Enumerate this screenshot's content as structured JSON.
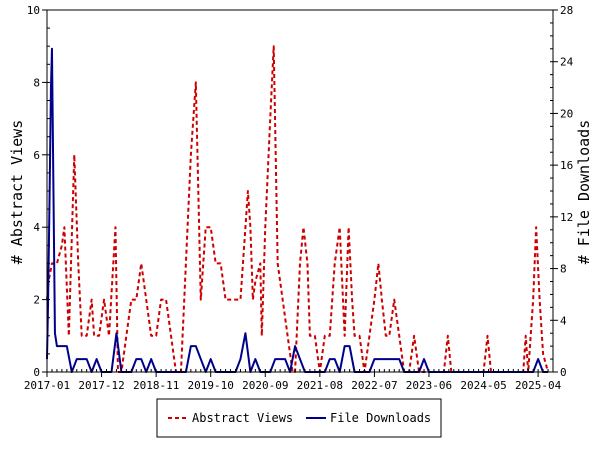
{
  "chart_data": {
    "type": "line",
    "ylabel_left": "# Abstract Views",
    "ylabel_right": "# File Downloads",
    "xlim": [
      0,
      102
    ],
    "ylim_left": [
      0,
      10
    ],
    "ylim_right": [
      0,
      28
    ],
    "yticks_left": [
      0,
      2,
      4,
      6,
      8,
      10
    ],
    "yticks_right": [
      0,
      4,
      8,
      12,
      16,
      20,
      24,
      28
    ],
    "xticks": [
      {
        "x": 0,
        "label": "2017-01"
      },
      {
        "x": 11,
        "label": "2017-12"
      },
      {
        "x": 22,
        "label": "2018-11"
      },
      {
        "x": 33,
        "label": "2019-10"
      },
      {
        "x": 44,
        "label": "2020-09"
      },
      {
        "x": 55,
        "label": "2021-08"
      },
      {
        "x": 66,
        "label": "2022-07"
      },
      {
        "x": 77,
        "label": "2023-06"
      },
      {
        "x": 88,
        "label": "2024-05"
      },
      {
        "x": 99,
        "label": "2025-04"
      }
    ],
    "grid": false,
    "legend_position": "bottom",
    "series": [
      {
        "name": "Abstract Views",
        "axis": "left",
        "color": "#cc0000",
        "style": "dashed",
        "points": [
          [
            0,
            2
          ],
          [
            0.3,
            2.5
          ],
          [
            1,
            3
          ],
          [
            2,
            3
          ],
          [
            3,
            3.5
          ],
          [
            3.5,
            4
          ],
          [
            4.4,
            1
          ],
          [
            5.5,
            6
          ],
          [
            6.3,
            3
          ],
          [
            7,
            1
          ],
          [
            8,
            1
          ],
          [
            9,
            2
          ],
          [
            9.5,
            1
          ],
          [
            10.5,
            1
          ],
          [
            11.5,
            2
          ],
          [
            12.5,
            1
          ],
          [
            13.8,
            4
          ],
          [
            14.3,
            0
          ],
          [
            15,
            0
          ],
          [
            16,
            1
          ],
          [
            17,
            2
          ],
          [
            18,
            2
          ],
          [
            19,
            3
          ],
          [
            20,
            2
          ],
          [
            21,
            1
          ],
          [
            22,
            1
          ],
          [
            23,
            2
          ],
          [
            24,
            2
          ],
          [
            25,
            1
          ],
          [
            26,
            0
          ],
          [
            27,
            0
          ],
          [
            28,
            3
          ],
          [
            29,
            6
          ],
          [
            30,
            8
          ],
          [
            31,
            2
          ],
          [
            32,
            4
          ],
          [
            33,
            4
          ],
          [
            34,
            3
          ],
          [
            35,
            3
          ],
          [
            36,
            2
          ],
          [
            37,
            2
          ],
          [
            38,
            2
          ],
          [
            39,
            2
          ],
          [
            40,
            4
          ],
          [
            40.5,
            5
          ],
          [
            41,
            4
          ],
          [
            41.5,
            2
          ],
          [
            42,
            2.5
          ],
          [
            43,
            3
          ],
          [
            43.3,
            1
          ],
          [
            44,
            4
          ],
          [
            45,
            7
          ],
          [
            45.7,
            9
          ],
          [
            46.5,
            3
          ],
          [
            47.5,
            2
          ],
          [
            48.5,
            1
          ],
          [
            49.5,
            0
          ],
          [
            50,
            0
          ],
          [
            51,
            3
          ],
          [
            51.7,
            4
          ],
          [
            52.5,
            3
          ],
          [
            53,
            1
          ],
          [
            54,
            1
          ],
          [
            55,
            0
          ],
          [
            56,
            1
          ],
          [
            57,
            1
          ],
          [
            58,
            3
          ],
          [
            59,
            4
          ],
          [
            60,
            1
          ],
          [
            60.8,
            4
          ],
          [
            61.5,
            2
          ],
          [
            62,
            1
          ],
          [
            63,
            1
          ],
          [
            64,
            0
          ],
          [
            65,
            1
          ],
          [
            66,
            2
          ],
          [
            66.8,
            3
          ],
          [
            67.5,
            2
          ],
          [
            68.3,
            1
          ],
          [
            69,
            1
          ],
          [
            70,
            2
          ],
          [
            71,
            1
          ],
          [
            72,
            0
          ],
          [
            73,
            0
          ],
          [
            74,
            1
          ],
          [
            75,
            0
          ],
          [
            76,
            0
          ],
          [
            77,
            0
          ],
          [
            78,
            0
          ],
          [
            79,
            0
          ],
          [
            80,
            0
          ],
          [
            80.8,
            1
          ],
          [
            81.5,
            0
          ],
          [
            82,
            0
          ],
          [
            83,
            0
          ],
          [
            84,
            0
          ],
          [
            85,
            0
          ],
          [
            86,
            0
          ],
          [
            87,
            0
          ],
          [
            88,
            0
          ],
          [
            88.8,
            1
          ],
          [
            89.5,
            0
          ],
          [
            90,
            0
          ],
          [
            91,
            0
          ],
          [
            92,
            0
          ],
          [
            93,
            0
          ],
          [
            94,
            0
          ],
          [
            95,
            0
          ],
          [
            96,
            0
          ],
          [
            96.5,
            1
          ],
          [
            97,
            0
          ],
          [
            98,
            2
          ],
          [
            98.6,
            4
          ],
          [
            99.3,
            2
          ],
          [
            100,
            0.5
          ],
          [
            101,
            0
          ]
        ]
      },
      {
        "name": "File Downloads",
        "axis": "right",
        "color": "#00008b",
        "style": "solid",
        "points": [
          [
            0,
            1
          ],
          [
            0.2,
            5
          ],
          [
            0.5,
            13
          ],
          [
            0.8,
            22
          ],
          [
            1,
            25
          ],
          [
            1.3,
            14
          ],
          [
            1.6,
            3
          ],
          [
            2,
            2
          ],
          [
            3,
            2
          ],
          [
            4,
            2
          ],
          [
            4.5,
            1
          ],
          [
            5,
            0
          ],
          [
            6,
            1
          ],
          [
            7,
            1
          ],
          [
            8,
            1
          ],
          [
            9,
            0
          ],
          [
            10,
            1
          ],
          [
            11,
            0
          ],
          [
            12,
            0
          ],
          [
            13,
            0
          ],
          [
            14,
            3
          ],
          [
            15,
            0
          ],
          [
            16,
            0
          ],
          [
            17,
            0
          ],
          [
            18,
            1
          ],
          [
            19,
            1
          ],
          [
            20,
            0
          ],
          [
            21,
            1
          ],
          [
            22,
            0
          ],
          [
            23,
            0
          ],
          [
            24,
            0
          ],
          [
            25,
            0
          ],
          [
            26,
            0
          ],
          [
            27,
            0
          ],
          [
            28,
            0
          ],
          [
            29,
            2
          ],
          [
            30,
            2
          ],
          [
            31,
            1
          ],
          [
            32,
            0
          ],
          [
            33,
            1
          ],
          [
            34,
            0
          ],
          [
            35,
            0
          ],
          [
            36,
            0
          ],
          [
            37,
            0
          ],
          [
            38,
            0
          ],
          [
            39,
            1
          ],
          [
            40,
            3
          ],
          [
            41,
            0
          ],
          [
            42,
            1
          ],
          [
            43,
            0
          ],
          [
            44,
            0
          ],
          [
            45,
            0
          ],
          [
            46,
            1
          ],
          [
            47,
            1
          ],
          [
            48,
            1
          ],
          [
            49,
            0
          ],
          [
            50,
            2
          ],
          [
            51,
            1
          ],
          [
            52,
            0
          ],
          [
            53,
            0
          ],
          [
            54,
            0
          ],
          [
            55,
            0
          ],
          [
            56,
            0
          ],
          [
            57,
            1
          ],
          [
            58,
            1
          ],
          [
            59,
            0
          ],
          [
            60,
            2
          ],
          [
            61,
            2
          ],
          [
            62,
            0
          ],
          [
            63,
            0
          ],
          [
            64,
            0
          ],
          [
            65,
            0
          ],
          [
            66,
            1
          ],
          [
            67,
            1
          ],
          [
            68,
            1
          ],
          [
            69,
            1
          ],
          [
            70,
            1
          ],
          [
            71,
            1
          ],
          [
            72,
            0
          ],
          [
            73,
            0
          ],
          [
            74,
            0
          ],
          [
            75,
            0
          ],
          [
            76,
            1
          ],
          [
            77,
            0
          ],
          [
            78,
            0
          ],
          [
            79,
            0
          ],
          [
            80,
            0
          ],
          [
            81,
            0
          ],
          [
            82,
            0
          ],
          [
            83,
            0
          ],
          [
            84,
            0
          ],
          [
            85,
            0
          ],
          [
            86,
            0
          ],
          [
            87,
            0
          ],
          [
            88,
            0
          ],
          [
            89,
            0
          ],
          [
            90,
            0
          ],
          [
            91,
            0
          ],
          [
            92,
            0
          ],
          [
            93,
            0
          ],
          [
            94,
            0
          ],
          [
            95,
            0
          ],
          [
            96,
            0
          ],
          [
            97,
            0
          ],
          [
            98,
            0
          ],
          [
            99,
            1
          ],
          [
            100,
            0
          ],
          [
            101,
            0
          ]
        ]
      }
    ]
  }
}
